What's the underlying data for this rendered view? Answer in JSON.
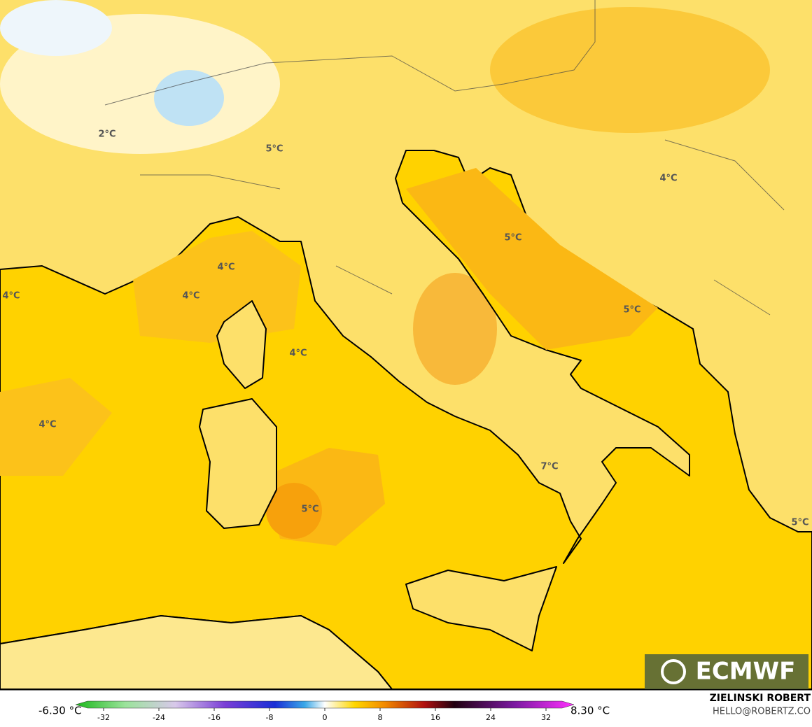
{
  "map": {
    "labels": [
      "2°C",
      "5°C",
      "4°C",
      "5°C",
      "4°C",
      "4°C",
      "4°C",
      "5°C",
      "4°C",
      "4°C",
      "7°C",
      "5°C",
      "5°C"
    ]
  },
  "logo": "ECMWF",
  "credit": {
    "author": "ZIELINSKI ROBERT",
    "contact": "HELLO@ROBERTZ.CO"
  },
  "colorbar": {
    "min_label": "-6.30 °C",
    "max_label": "8.30 °C",
    "lim": [
      -36,
      36
    ],
    "ticks": [
      -32,
      -24,
      -16,
      -8,
      0,
      8,
      16,
      24,
      32
    ]
  }
}
